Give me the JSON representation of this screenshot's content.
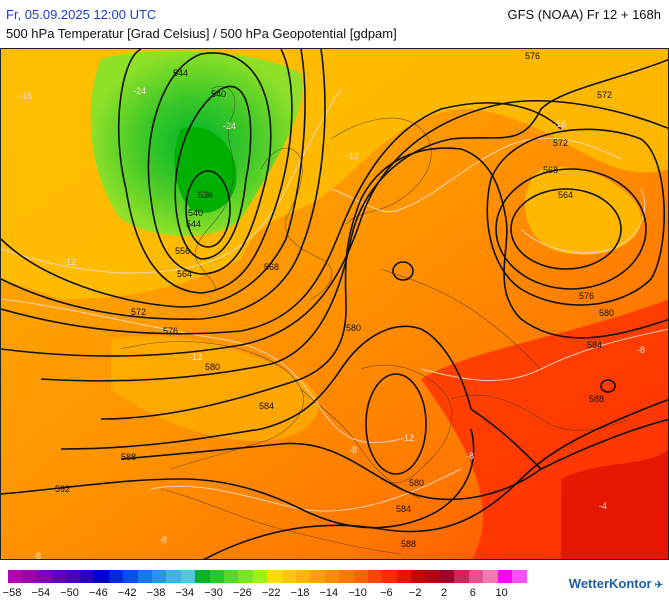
{
  "header": {
    "date": "Fr, 05.09.2025 12:00 UTC",
    "model": "GFS (NOAA) Fr 12 + 168h",
    "subtitle": "500 hPa Temperatur [Grad Celsius] / 500 hPa Geopotential [gdpam]"
  },
  "map": {
    "region": "Europe / North Atlantic",
    "contour_variable": "500 hPa Geopotential",
    "contour_labels": [
      "544",
      "540",
      "536",
      "540",
      "544",
      "556",
      "564",
      "568",
      "572",
      "576",
      "580",
      "584",
      "588",
      "592",
      "580",
      "584",
      "588",
      "576",
      "572",
      "568",
      "564",
      "572",
      "576",
      "580",
      "584",
      "588",
      "580"
    ],
    "temperature_labels": [
      "-24",
      "-24",
      "-16",
      "-16",
      "-12",
      "-12",
      "-12",
      "-12",
      "-8",
      "-8",
      "-8",
      "-8",
      "-4",
      "-8"
    ]
  },
  "legend": {
    "labels": [
      "−58",
      "−54",
      "−50",
      "−46",
      "−42",
      "−38",
      "−34",
      "−30",
      "−26",
      "−22",
      "−18",
      "−14",
      "−10",
      "−6",
      "−2",
      "2",
      "6",
      "10"
    ],
    "colors": [
      "#b400b4",
      "#9a00b0",
      "#8200b0",
      "#6400b4",
      "#4600b8",
      "#2800c0",
      "#0000c8",
      "#0028dc",
      "#0050f0",
      "#1478f0",
      "#2896e6",
      "#3cb4e6",
      "#50c8dc",
      "#00b428",
      "#28c828",
      "#50dc28",
      "#78e61e",
      "#a0f014",
      "#ffdc00",
      "#ffc800",
      "#ffb400",
      "#ffa000",
      "#ff8c00",
      "#ff7800",
      "#ff6400",
      "#ff4600",
      "#ff2800",
      "#e61400",
      "#c80000",
      "#b40014",
      "#a00028",
      "#c8285a",
      "#e6508c",
      "#ff78b4",
      "#ff00ff",
      "#ff50ff"
    ]
  },
  "brand": {
    "name": "WetterKontor",
    "mark": "✈"
  }
}
